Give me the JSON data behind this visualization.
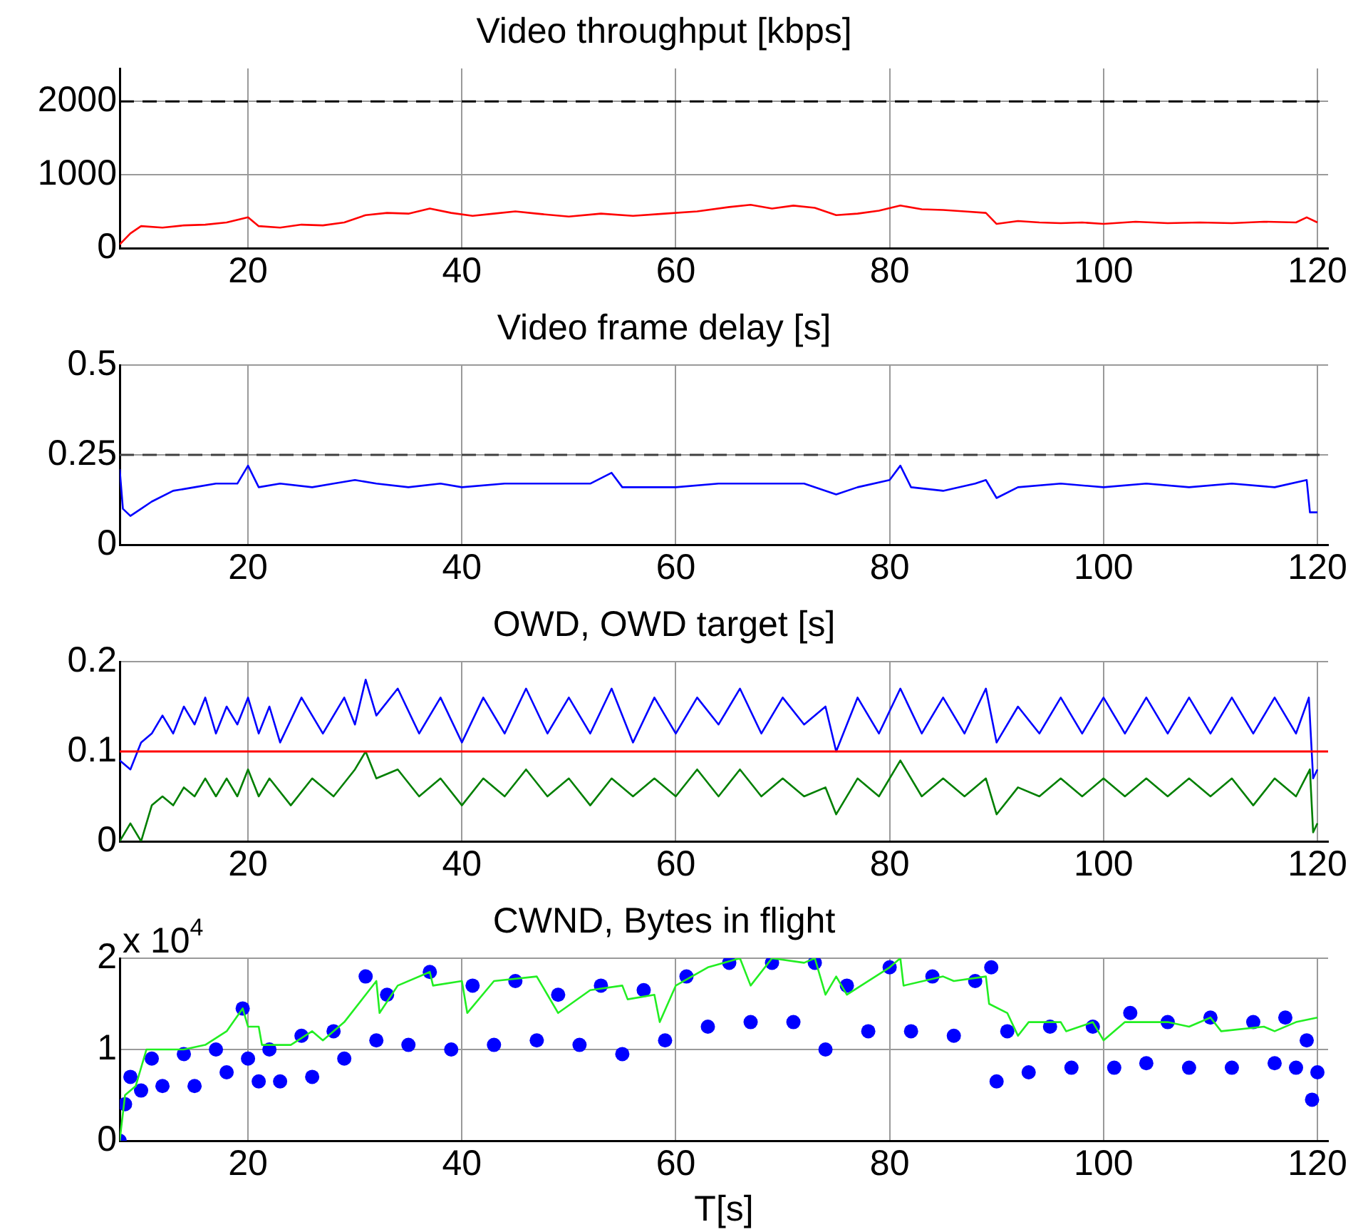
{
  "chart_data": [
    {
      "type": "line",
      "title": "Video throughput [kbps]",
      "xlim": [
        8,
        121
      ],
      "xticks": [
        20,
        40,
        60,
        80,
        100,
        120
      ],
      "ylim": [
        0,
        2450
      ],
      "yticks": [
        0,
        1000,
        2000
      ],
      "grid": true,
      "legend": false,
      "ref_lines": [
        {
          "axis": "y",
          "value": 2000,
          "color": "#000000",
          "line_style": "dashed"
        }
      ],
      "series": [
        {
          "color": "#ff0000",
          "x": [
            8,
            9,
            10,
            12,
            14,
            16,
            18,
            20,
            21,
            23,
            25,
            27,
            29,
            31,
            33,
            35,
            37,
            39,
            41,
            43,
            45,
            47,
            50,
            53,
            56,
            59,
            62,
            65,
            67,
            69,
            71,
            73,
            75,
            77,
            79,
            81,
            83,
            85,
            87,
            89,
            90,
            92,
            94,
            96,
            98,
            100,
            103,
            106,
            109,
            112,
            115,
            118,
            119,
            120
          ],
          "values": [
            50,
            200,
            300,
            280,
            310,
            320,
            350,
            420,
            300,
            280,
            320,
            310,
            350,
            450,
            480,
            470,
            540,
            480,
            440,
            470,
            500,
            470,
            430,
            470,
            440,
            470,
            500,
            560,
            590,
            540,
            580,
            550,
            450,
            470,
            510,
            580,
            530,
            520,
            500,
            480,
            330,
            370,
            350,
            340,
            350,
            330,
            360,
            340,
            350,
            340,
            360,
            350,
            420,
            350
          ]
        }
      ]
    },
    {
      "type": "line",
      "title": "Video frame delay [s]",
      "xlim": [
        8,
        121
      ],
      "xticks": [
        20,
        40,
        60,
        80,
        100,
        120
      ],
      "ylim": [
        0,
        0.5
      ],
      "yticks": [
        0,
        0.25,
        0.5
      ],
      "grid": true,
      "legend": false,
      "ref_lines": [
        {
          "axis": "y",
          "value": 0.25,
          "color": "#404040",
          "line_style": "dashed"
        }
      ],
      "series": [
        {
          "color": "#0000ff",
          "x": [
            8,
            8.3,
            9,
            10,
            11,
            13,
            15,
            17,
            19,
            20,
            21,
            23,
            26,
            28,
            30,
            32,
            35,
            38,
            40,
            44,
            48,
            52,
            54,
            55,
            58,
            60,
            64,
            68,
            72,
            75,
            77,
            80,
            81,
            82,
            85,
            88,
            89,
            90,
            92,
            96,
            100,
            104,
            108,
            112,
            116,
            119,
            119.3,
            120
          ],
          "values": [
            0.21,
            0.1,
            0.08,
            0.1,
            0.12,
            0.15,
            0.16,
            0.17,
            0.17,
            0.22,
            0.16,
            0.17,
            0.16,
            0.17,
            0.18,
            0.17,
            0.16,
            0.17,
            0.16,
            0.17,
            0.17,
            0.17,
            0.2,
            0.16,
            0.16,
            0.16,
            0.17,
            0.17,
            0.17,
            0.14,
            0.16,
            0.18,
            0.22,
            0.16,
            0.15,
            0.17,
            0.18,
            0.13,
            0.16,
            0.17,
            0.16,
            0.17,
            0.16,
            0.17,
            0.16,
            0.18,
            0.09,
            0.09
          ]
        }
      ]
    },
    {
      "type": "line",
      "title": "OWD, OWD target [s]",
      "xlim": [
        8,
        121
      ],
      "xticks": [
        20,
        40,
        60,
        80,
        100,
        120
      ],
      "ylim": [
        0,
        0.2
      ],
      "yticks": [
        0,
        0.1,
        0.2
      ],
      "grid": true,
      "legend": false,
      "ref_lines": [
        {
          "axis": "y",
          "value": 0.1,
          "color": "#ff0000",
          "line_style": "solid"
        }
      ],
      "series": [
        {
          "color": "#0000ff",
          "x": [
            8,
            9,
            10,
            11,
            12,
            13,
            14,
            15,
            16,
            17,
            18,
            19,
            20,
            21,
            22,
            23,
            25,
            27,
            29,
            30,
            31,
            32,
            34,
            36,
            38,
            40,
            42,
            44,
            46,
            48,
            50,
            52,
            54,
            56,
            58,
            60,
            62,
            64,
            66,
            68,
            70,
            72,
            74,
            75,
            77,
            79,
            81,
            83,
            85,
            87,
            89,
            90,
            92,
            94,
            96,
            98,
            100,
            102,
            104,
            106,
            108,
            110,
            112,
            114,
            116,
            118,
            119.2,
            119.6,
            120
          ],
          "values": [
            0.09,
            0.08,
            0.11,
            0.12,
            0.14,
            0.12,
            0.15,
            0.13,
            0.16,
            0.12,
            0.15,
            0.13,
            0.16,
            0.12,
            0.15,
            0.11,
            0.16,
            0.12,
            0.16,
            0.13,
            0.18,
            0.14,
            0.17,
            0.12,
            0.16,
            0.11,
            0.16,
            0.12,
            0.17,
            0.12,
            0.16,
            0.12,
            0.17,
            0.11,
            0.16,
            0.12,
            0.16,
            0.13,
            0.17,
            0.12,
            0.16,
            0.13,
            0.15,
            0.1,
            0.16,
            0.12,
            0.17,
            0.12,
            0.16,
            0.12,
            0.17,
            0.11,
            0.15,
            0.12,
            0.16,
            0.12,
            0.16,
            0.12,
            0.16,
            0.12,
            0.16,
            0.12,
            0.16,
            0.12,
            0.16,
            0.12,
            0.16,
            0.07,
            0.08
          ]
        },
        {
          "color": "#007f00",
          "x": [
            8,
            9,
            10,
            11,
            12,
            13,
            14,
            15,
            16,
            17,
            18,
            19,
            20,
            21,
            22,
            24,
            26,
            28,
            30,
            31,
            32,
            34,
            36,
            38,
            40,
            42,
            44,
            46,
            48,
            50,
            52,
            54,
            56,
            58,
            60,
            62,
            64,
            66,
            68,
            70,
            72,
            74,
            75,
            77,
            79,
            81,
            83,
            85,
            87,
            89,
            90,
            92,
            94,
            96,
            98,
            100,
            102,
            104,
            106,
            108,
            110,
            112,
            114,
            116,
            118,
            119.3,
            119.6,
            120
          ],
          "values": [
            0,
            0.02,
            0,
            0.04,
            0.05,
            0.04,
            0.06,
            0.05,
            0.07,
            0.05,
            0.07,
            0.05,
            0.08,
            0.05,
            0.07,
            0.04,
            0.07,
            0.05,
            0.08,
            0.1,
            0.07,
            0.08,
            0.05,
            0.07,
            0.04,
            0.07,
            0.05,
            0.08,
            0.05,
            0.07,
            0.04,
            0.07,
            0.05,
            0.07,
            0.05,
            0.08,
            0.05,
            0.08,
            0.05,
            0.07,
            0.05,
            0.06,
            0.03,
            0.07,
            0.05,
            0.09,
            0.05,
            0.07,
            0.05,
            0.07,
            0.03,
            0.06,
            0.05,
            0.07,
            0.05,
            0.07,
            0.05,
            0.07,
            0.05,
            0.07,
            0.05,
            0.07,
            0.04,
            0.07,
            0.05,
            0.08,
            0.01,
            0.02
          ]
        }
      ]
    },
    {
      "type": "line",
      "title": "CWND, Bytes in flight",
      "xlabel": "T[s]",
      "annotations": [
        "x 10$^{4}$"
      ],
      "xlim": [
        8,
        121
      ],
      "xticks": [
        20,
        40,
        60,
        80,
        100,
        120
      ],
      "ylim": [
        0,
        2
      ],
      "yticks": [
        0,
        1,
        2
      ],
      "grid": true,
      "legend": false,
      "series": [
        {
          "type": "scatter",
          "marker": "circle",
          "color": "#0000ff",
          "x": [
            8,
            8.5,
            9,
            10,
            11,
            12,
            14,
            15,
            17,
            18,
            19.5,
            20,
            21,
            22,
            23,
            25,
            26,
            28,
            29,
            31,
            32,
            33,
            35,
            37,
            39,
            41,
            43,
            45,
            47,
            49,
            51,
            53,
            55,
            57,
            59,
            61,
            63,
            65,
            67,
            69,
            71,
            73,
            74,
            76,
            78,
            80,
            82,
            84,
            86,
            88,
            89.5,
            90,
            91,
            93,
            95,
            97,
            99,
            101,
            102.5,
            104,
            106,
            108,
            110,
            112,
            114,
            116,
            117,
            118,
            119,
            119.5,
            120
          ],
          "values": [
            0,
            0.4,
            0.7,
            0.55,
            0.9,
            0.6,
            0.95,
            0.6,
            1.0,
            0.75,
            1.45,
            0.9,
            0.65,
            1.0,
            0.65,
            1.15,
            0.7,
            1.2,
            0.9,
            1.8,
            1.1,
            1.6,
            1.05,
            1.85,
            1.0,
            1.7,
            1.05,
            1.75,
            1.1,
            1.6,
            1.05,
            1.7,
            0.95,
            1.65,
            1.1,
            1.8,
            1.25,
            1.95,
            1.3,
            1.95,
            1.3,
            1.95,
            1.0,
            1.7,
            1.2,
            1.9,
            1.2,
            1.8,
            1.15,
            1.75,
            1.9,
            0.65,
            1.2,
            0.75,
            1.25,
            0.8,
            1.25,
            0.8,
            1.4,
            0.85,
            1.3,
            0.8,
            1.35,
            0.8,
            1.3,
            0.85,
            1.35,
            0.8,
            1.1,
            0.45,
            0.75
          ]
        },
        {
          "type": "line",
          "color": "#22ee22",
          "x": [
            8,
            8.5,
            9.5,
            10.5,
            12,
            14,
            16,
            18,
            19.5,
            20,
            21,
            21.3,
            24,
            26,
            27,
            29,
            31,
            32,
            32.3,
            34,
            37,
            37.3,
            40,
            40.5,
            43,
            47,
            49,
            52,
            55,
            55.5,
            58,
            58.5,
            60,
            63,
            66,
            67,
            69,
            72,
            73,
            74,
            75,
            76,
            80,
            81,
            81.3,
            85,
            86,
            89,
            89.3,
            91,
            92,
            93,
            96,
            96.5,
            99,
            100,
            102,
            106,
            108,
            110,
            111,
            115,
            116,
            118,
            120
          ],
          "values": [
            0,
            0.5,
            0.6,
            1.0,
            1.0,
            1.0,
            1.05,
            1.2,
            1.45,
            1.25,
            1.25,
            1.05,
            1.05,
            1.2,
            1.1,
            1.3,
            1.6,
            1.75,
            1.4,
            1.7,
            1.85,
            1.7,
            1.75,
            1.4,
            1.75,
            1.8,
            1.4,
            1.65,
            1.7,
            1.55,
            1.6,
            1.3,
            1.7,
            1.9,
            2.0,
            1.7,
            2.0,
            1.95,
            2.0,
            1.6,
            1.8,
            1.6,
            1.9,
            2.0,
            1.7,
            1.8,
            1.75,
            1.8,
            1.5,
            1.4,
            1.15,
            1.3,
            1.3,
            1.2,
            1.3,
            1.1,
            1.3,
            1.3,
            1.25,
            1.35,
            1.2,
            1.25,
            1.2,
            1.3,
            1.35
          ]
        }
      ]
    }
  ]
}
